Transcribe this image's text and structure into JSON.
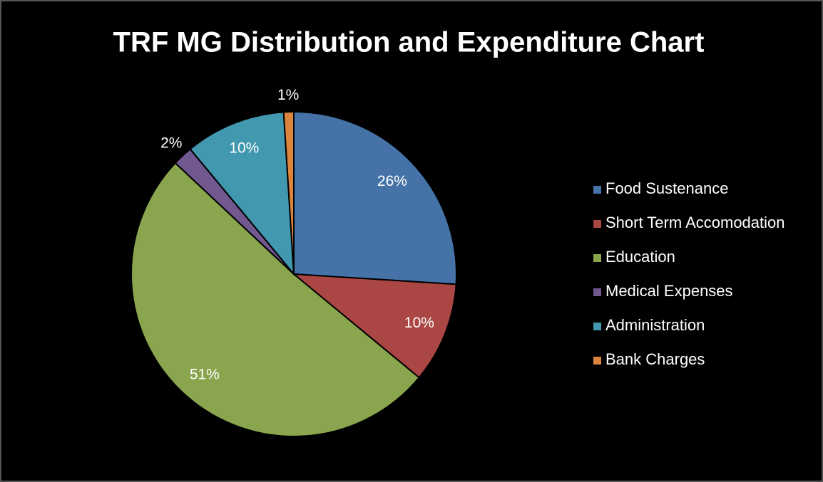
{
  "chart_data": {
    "type": "pie",
    "title": "TRF MG Distribution and Expenditure Chart",
    "categories": [
      "Food Sustenance",
      "Short Term Accomodation",
      "Education",
      "Medical Expenses",
      "Administration",
      "Bank Charges"
    ],
    "values": [
      26,
      10,
      51,
      2,
      10,
      1
    ],
    "value_labels": [
      "26%",
      "10%",
      "51%",
      "2%",
      "10%",
      "1%"
    ],
    "colors": [
      "#4572a7",
      "#aa4643",
      "#89a54e",
      "#71588f",
      "#4198af",
      "#db843d"
    ],
    "legend": "right"
  }
}
